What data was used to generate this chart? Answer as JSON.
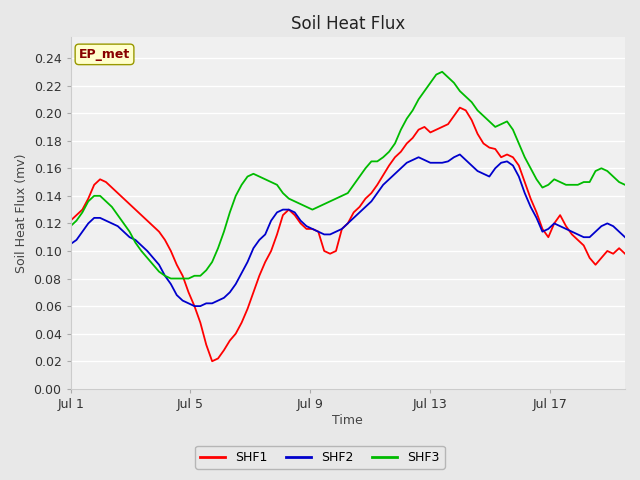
{
  "title": "Soil Heat Flux",
  "xlabel": "Time",
  "ylabel": "Soil Heat Flux (mv)",
  "ylim": [
    0.0,
    0.255
  ],
  "yticks": [
    0.0,
    0.02,
    0.04,
    0.06,
    0.08,
    0.1,
    0.12,
    0.14,
    0.16,
    0.18,
    0.2,
    0.22,
    0.24
  ],
  "outer_bg": "#e8e8e8",
  "plot_bg": "#f0f0f0",
  "grid_color": "#ffffff",
  "annotation_text": "EP_met",
  "annotation_bg": "#ffffcc",
  "annotation_border": "#999900",
  "annotation_text_color": "#880000",
  "legend_entries": [
    "SHF1",
    "SHF2",
    "SHF3"
  ],
  "line_colors": [
    "#ff0000",
    "#0000cc",
    "#00bb00"
  ],
  "xtick_positions": [
    0,
    4,
    8,
    12,
    16
  ],
  "xtick_labels": [
    "Jul 1",
    "Jul 5",
    "Jul 9",
    "Jul 13",
    "Jul 17"
  ],
  "xlim": [
    0,
    18.5
  ],
  "shf1": [
    0.122,
    0.126,
    0.13,
    0.138,
    0.148,
    0.152,
    0.15,
    0.146,
    0.142,
    0.138,
    0.134,
    0.13,
    0.126,
    0.122,
    0.118,
    0.114,
    0.108,
    0.1,
    0.09,
    0.082,
    0.07,
    0.06,
    0.048,
    0.032,
    0.02,
    0.022,
    0.028,
    0.035,
    0.04,
    0.048,
    0.058,
    0.07,
    0.082,
    0.092,
    0.1,
    0.112,
    0.126,
    0.13,
    0.126,
    0.12,
    0.116,
    0.116,
    0.114,
    0.1,
    0.098,
    0.1,
    0.116,
    0.12,
    0.128,
    0.132,
    0.138,
    0.142,
    0.148,
    0.155,
    0.162,
    0.168,
    0.172,
    0.178,
    0.182,
    0.188,
    0.19,
    0.186,
    0.188,
    0.19,
    0.192,
    0.198,
    0.204,
    0.202,
    0.195,
    0.185,
    0.178,
    0.175,
    0.174,
    0.168,
    0.17,
    0.168,
    0.162,
    0.15,
    0.138,
    0.128,
    0.116,
    0.11,
    0.12,
    0.126,
    0.118,
    0.112,
    0.108,
    0.104,
    0.095,
    0.09,
    0.095,
    0.1,
    0.098,
    0.102,
    0.098
  ],
  "shf2": [
    0.105,
    0.108,
    0.114,
    0.12,
    0.124,
    0.124,
    0.122,
    0.12,
    0.118,
    0.114,
    0.11,
    0.108,
    0.104,
    0.1,
    0.095,
    0.09,
    0.082,
    0.076,
    0.068,
    0.064,
    0.062,
    0.06,
    0.06,
    0.062,
    0.062,
    0.064,
    0.066,
    0.07,
    0.076,
    0.084,
    0.092,
    0.102,
    0.108,
    0.112,
    0.122,
    0.128,
    0.13,
    0.13,
    0.128,
    0.122,
    0.118,
    0.116,
    0.114,
    0.112,
    0.112,
    0.114,
    0.116,
    0.12,
    0.124,
    0.128,
    0.132,
    0.136,
    0.142,
    0.148,
    0.152,
    0.156,
    0.16,
    0.164,
    0.166,
    0.168,
    0.166,
    0.164,
    0.164,
    0.164,
    0.165,
    0.168,
    0.17,
    0.166,
    0.162,
    0.158,
    0.156,
    0.154,
    0.16,
    0.164,
    0.165,
    0.162,
    0.154,
    0.142,
    0.132,
    0.124,
    0.114,
    0.116,
    0.12,
    0.118,
    0.116,
    0.114,
    0.112,
    0.11,
    0.11,
    0.114,
    0.118,
    0.12,
    0.118,
    0.114,
    0.11
  ],
  "shf3": [
    0.118,
    0.122,
    0.128,
    0.136,
    0.14,
    0.14,
    0.136,
    0.132,
    0.126,
    0.12,
    0.114,
    0.106,
    0.1,
    0.095,
    0.09,
    0.085,
    0.082,
    0.08,
    0.08,
    0.08,
    0.08,
    0.082,
    0.082,
    0.086,
    0.092,
    0.102,
    0.114,
    0.128,
    0.14,
    0.148,
    0.154,
    0.156,
    0.154,
    0.152,
    0.15,
    0.148,
    0.142,
    0.138,
    0.136,
    0.134,
    0.132,
    0.13,
    0.132,
    0.134,
    0.136,
    0.138,
    0.14,
    0.142,
    0.148,
    0.154,
    0.16,
    0.165,
    0.165,
    0.168,
    0.172,
    0.178,
    0.188,
    0.196,
    0.202,
    0.21,
    0.216,
    0.222,
    0.228,
    0.23,
    0.226,
    0.222,
    0.216,
    0.212,
    0.208,
    0.202,
    0.198,
    0.194,
    0.19,
    0.192,
    0.194,
    0.188,
    0.178,
    0.168,
    0.16,
    0.152,
    0.146,
    0.148,
    0.152,
    0.15,
    0.148,
    0.148,
    0.148,
    0.15,
    0.15,
    0.158,
    0.16,
    0.158,
    0.154,
    0.15,
    0.148
  ]
}
